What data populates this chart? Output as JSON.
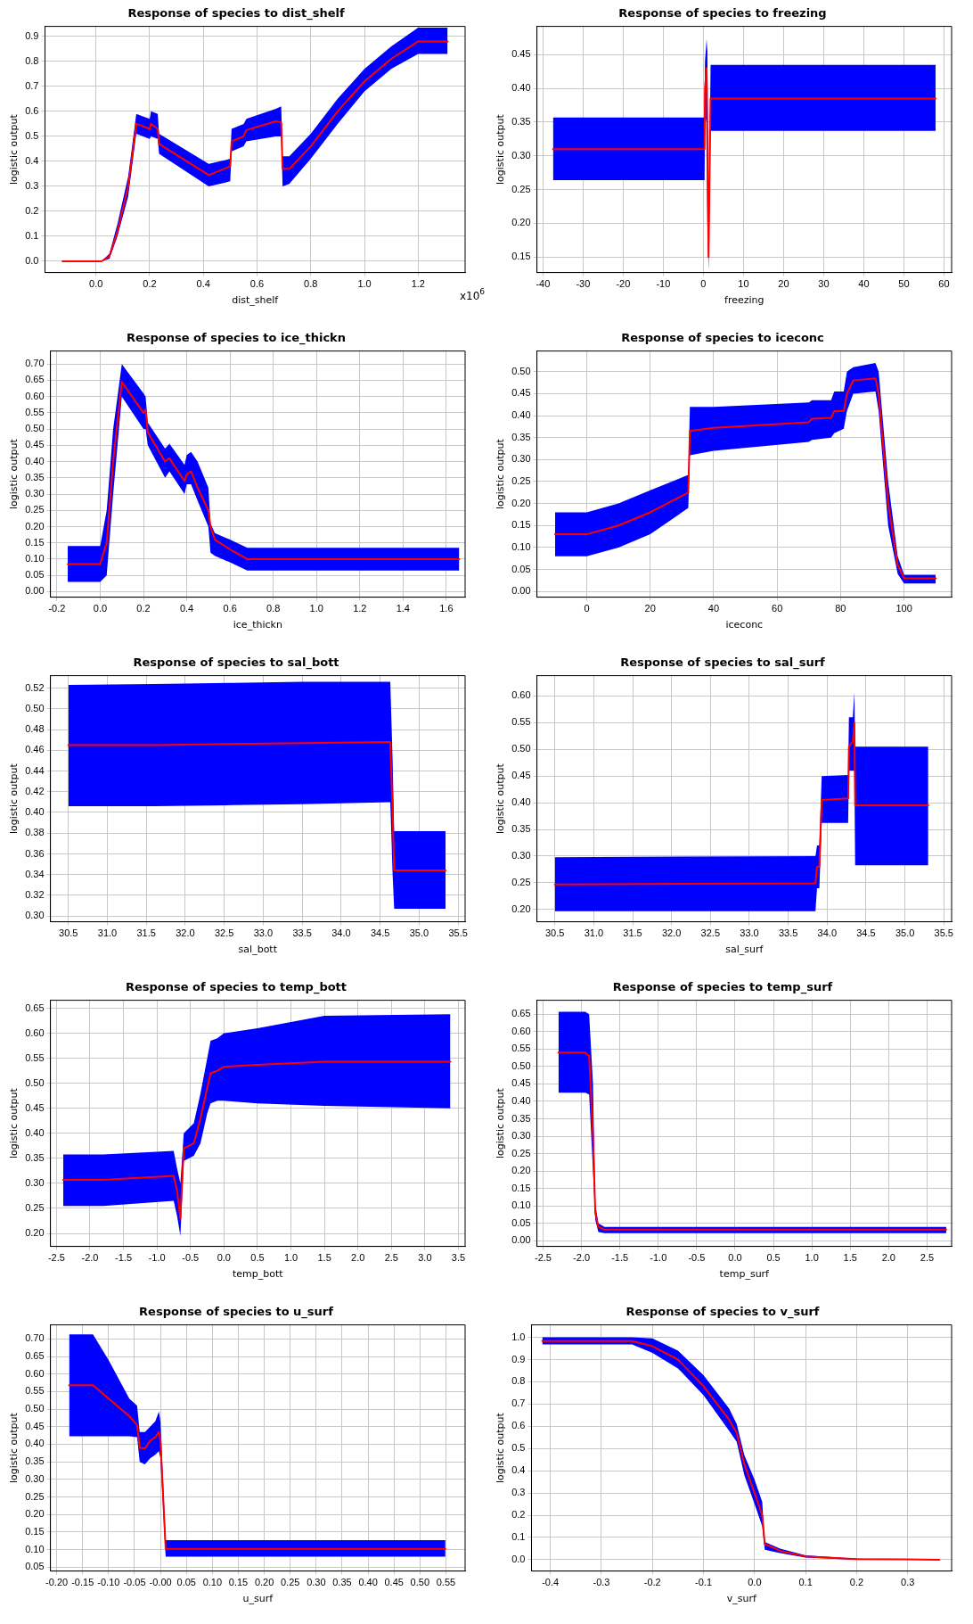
{
  "chart_data": [
    {
      "type": "line",
      "title": "Response of species to dist_shelf",
      "xlabel": "dist_shelf",
      "ylabel": "logistic output",
      "grid": true,
      "annotations": [
        "x10$^{6}$"
      ],
      "xlim": [
        -0.19,
        1.375
      ],
      "ylim": [
        -0.045,
        0.94
      ],
      "xticks": [
        {
          "value": 0,
          "label": "0.0"
        },
        {
          "value": 0.2,
          "label": "0.2"
        },
        {
          "value": 0.4,
          "label": "0.4"
        },
        {
          "value": 0.6,
          "label": "0.6"
        },
        {
          "value": 0.8,
          "label": "0.8"
        },
        {
          "value": 1,
          "label": "1.0"
        },
        {
          "value": 1.2,
          "label": "1.2"
        }
      ],
      "yticks": [
        {
          "value": 0,
          "label": "0.0"
        },
        0.1,
        0.2,
        0.3,
        0.4,
        0.5,
        0.6,
        0.7,
        0.8,
        0.9
      ],
      "series": [
        {
          "color": "#ff0000",
          "x": [
            -0.125,
            0.02,
            0.05,
            0.08,
            0.12,
            0.15,
            0.2,
            0.205,
            0.23,
            0.235,
            0.42,
            0.5,
            0.505,
            0.55,
            0.56,
            0.67,
            0.69,
            0.695,
            0.72,
            0.8,
            0.9,
            1.0,
            1.1,
            1.2,
            1.31
          ],
          "values": [
            0,
            0,
            0.02,
            0.12,
            0.3,
            0.55,
            0.53,
            0.55,
            0.53,
            0.47,
            0.345,
            0.38,
            0.48,
            0.5,
            0.525,
            0.56,
            0.555,
            0.37,
            0.37,
            0.46,
            0.6,
            0.72,
            0.81,
            0.88,
            0.88
          ],
          "upper": [
            0,
            0,
            0.03,
            0.15,
            0.34,
            0.59,
            0.57,
            0.6,
            0.59,
            0.51,
            0.39,
            0.41,
            0.53,
            0.55,
            0.57,
            0.61,
            0.62,
            0.42,
            0.42,
            0.51,
            0.65,
            0.77,
            0.86,
            0.935,
            0.935
          ],
          "lower": [
            0,
            0,
            0.01,
            0.1,
            0.26,
            0.51,
            0.49,
            0.5,
            0.49,
            0.43,
            0.3,
            0.32,
            0.44,
            0.46,
            0.48,
            0.5,
            0.5,
            0.3,
            0.31,
            0.41,
            0.55,
            0.68,
            0.77,
            0.83,
            0.83
          ]
        }
      ]
    },
    {
      "type": "line",
      "title": "Response of species to freezing",
      "xlabel": "freezing",
      "ylabel": "logistic output",
      "grid": true,
      "xlim": [
        -41.5,
        61.9
      ],
      "ylim": [
        0.127,
        0.492
      ],
      "xticks": [
        -40,
        -30,
        -20,
        -10,
        0,
        10,
        20,
        30,
        40,
        50,
        60
      ],
      "yticks": [
        0.15,
        {
          "value": 0.2,
          "label": "0.20"
        },
        0.25,
        {
          "value": 0.3,
          "label": "0.30"
        },
        0.35,
        {
          "value": 0.4,
          "label": "0.40"
        },
        0.45
      ],
      "series": [
        {
          "color": "#ff0000",
          "x": [
            -37.5,
            0.3,
            0.4,
            0.8,
            1.0,
            1.3,
            1.6,
            1.8,
            2.0,
            57.9
          ],
          "values": [
            0.31,
            0.31,
            0.4,
            0.43,
            0.3,
            0.15,
            0.3,
            0.385,
            0.385,
            0.385
          ],
          "upper": [
            0.357,
            0.357,
            0.44,
            0.473,
            0.455,
            0.2,
            0.33,
            0.435,
            0.435,
            0.435
          ],
          "lower": [
            0.264,
            0.264,
            0.36,
            0.35,
            0.2,
            0.13,
            0.24,
            0.337,
            0.337,
            0.337
          ]
        }
      ]
    },
    {
      "type": "line",
      "title": "Response of species to ice_thickn",
      "xlabel": "ice_thickn",
      "ylabel": "logistic output",
      "grid": true,
      "xlim": [
        -0.23,
        1.687
      ],
      "ylim": [
        -0.017,
        0.74
      ],
      "xticks": [
        {
          "value": -0.2,
          "label": "-0.2"
        },
        {
          "value": 0,
          "label": "0.0"
        },
        {
          "value": 0.2,
          "label": "0.2"
        },
        {
          "value": 0.4,
          "label": "0.4"
        },
        {
          "value": 0.6,
          "label": "0.6"
        },
        {
          "value": 0.8,
          "label": "0.8"
        },
        {
          "value": 1,
          "label": "1.0"
        },
        {
          "value": 1.2,
          "label": "1.2"
        },
        {
          "value": 1.4,
          "label": "1.4"
        },
        {
          "value": 1.6,
          "label": "1.6"
        }
      ],
      "yticks": [
        {
          "value": 0,
          "label": "0.00"
        },
        0.05,
        {
          "value": 0.1,
          "label": "0.10"
        },
        0.15,
        {
          "value": 0.2,
          "label": "0.20"
        },
        0.25,
        {
          "value": 0.3,
          "label": "0.30"
        },
        0.35,
        {
          "value": 0.4,
          "label": "0.40"
        },
        0.45,
        {
          "value": 0.5,
          "label": "0.50"
        },
        0.55,
        {
          "value": 0.6,
          "label": "0.60"
        },
        0.65,
        {
          "value": 0.7,
          "label": "0.70"
        }
      ],
      "series": [
        {
          "color": "#ff0000",
          "x": [
            -0.15,
            0,
            0.03,
            0.06,
            0.1,
            0.2,
            0.21,
            0.22,
            0.3,
            0.32,
            0.39,
            0.4,
            0.42,
            0.45,
            0.5,
            0.51,
            0.53,
            0.6,
            0.68,
            1.66
          ],
          "values": [
            0.085,
            0.085,
            0.15,
            0.4,
            0.645,
            0.55,
            0.56,
            0.49,
            0.4,
            0.41,
            0.34,
            0.36,
            0.37,
            0.32,
            0.25,
            0.2,
            0.16,
            0.13,
            0.1,
            0.1
          ],
          "upper": [
            0.14,
            0.14,
            0.25,
            0.5,
            0.7,
            0.61,
            0.6,
            0.52,
            0.44,
            0.455,
            0.39,
            0.42,
            0.43,
            0.4,
            0.32,
            0.21,
            0.18,
            0.16,
            0.135,
            0.135
          ],
          "lower": [
            0.03,
            0.03,
            0.05,
            0.3,
            0.6,
            0.5,
            0.5,
            0.45,
            0.35,
            0.37,
            0.3,
            0.33,
            0.33,
            0.28,
            0.2,
            0.12,
            0.11,
            0.09,
            0.065,
            0.065
          ]
        }
      ]
    },
    {
      "type": "line",
      "title": "Response of species to iceconc",
      "xlabel": "iceconc",
      "ylabel": "logistic output",
      "grid": true,
      "xlim": [
        -15.7,
        115
      ],
      "ylim": [
        -0.013,
        0.547
      ],
      "xticks": [
        0,
        20,
        40,
        60,
        80,
        100
      ],
      "yticks": [
        {
          "value": 0,
          "label": "0.00"
        },
        0.05,
        {
          "value": 0.1,
          "label": "0.10"
        },
        0.15,
        {
          "value": 0.2,
          "label": "0.20"
        },
        0.25,
        {
          "value": 0.3,
          "label": "0.30"
        },
        0.35,
        {
          "value": 0.4,
          "label": "0.40"
        },
        0.45,
        {
          "value": 0.5,
          "label": "0.50"
        }
      ],
      "series": [
        {
          "color": "#ff0000",
          "x": [
            -10,
            0,
            10,
            20,
            32,
            32.5,
            40,
            70,
            71,
            77,
            78,
            81,
            82,
            84,
            91,
            92,
            95,
            98,
            100,
            110
          ],
          "values": [
            0.13,
            0.13,
            0.15,
            0.18,
            0.225,
            0.365,
            0.372,
            0.385,
            0.393,
            0.395,
            0.41,
            0.41,
            0.45,
            0.48,
            0.485,
            0.45,
            0.2,
            0.06,
            0.03,
            0.03
          ],
          "upper": [
            0.18,
            0.18,
            0.2,
            0.23,
            0.265,
            0.42,
            0.42,
            0.43,
            0.435,
            0.435,
            0.455,
            0.455,
            0.5,
            0.51,
            0.52,
            0.5,
            0.25,
            0.08,
            0.038,
            0.038
          ],
          "lower": [
            0.08,
            0.08,
            0.1,
            0.13,
            0.19,
            0.31,
            0.32,
            0.34,
            0.345,
            0.35,
            0.36,
            0.37,
            0.41,
            0.45,
            0.455,
            0.41,
            0.15,
            0.04,
            0.018,
            0.018
          ]
        }
      ]
    },
    {
      "type": "line",
      "title": "Response of species to sal_bott",
      "xlabel": "sal_bott",
      "ylabel": "logistic output",
      "grid": true,
      "xlim": [
        30.27,
        35.59
      ],
      "ylim": [
        0.2945,
        0.532
      ],
      "xticks": [
        30.5,
        {
          "value": 31,
          "label": "31.0"
        },
        31.5,
        {
          "value": 32,
          "label": "32.0"
        },
        32.5,
        {
          "value": 33,
          "label": "33.0"
        },
        33.5,
        {
          "value": 34,
          "label": "34.0"
        },
        34.5,
        {
          "value": 35,
          "label": "35.0"
        },
        35.5
      ],
      "yticks": [
        {
          "value": 0.3,
          "label": "0.30"
        },
        0.32,
        0.34,
        0.36,
        0.38,
        {
          "value": 0.4,
          "label": "0.40"
        },
        0.42,
        0.44,
        0.46,
        0.48,
        {
          "value": 0.5,
          "label": "0.50"
        },
        0.52
      ],
      "series": [
        {
          "color": "#ff0000",
          "x": [
            30.5,
            31.6,
            32.6,
            33.5,
            34.63,
            34.66,
            34.68,
            35.34
          ],
          "values": [
            0.465,
            0.465,
            0.466,
            0.467,
            0.468,
            0.4,
            0.344,
            0.344
          ],
          "upper": [
            0.523,
            0.524,
            0.525,
            0.526,
            0.526,
            0.45,
            0.382,
            0.382
          ],
          "lower": [
            0.406,
            0.406,
            0.407,
            0.408,
            0.41,
            0.34,
            0.307,
            0.307
          ]
        }
      ]
    },
    {
      "type": "line",
      "title": "Response of species to sal_surf",
      "xlabel": "sal_surf",
      "ylabel": "logistic output",
      "grid": true,
      "xlim": [
        30.27,
        35.6
      ],
      "ylim": [
        0.177,
        0.638
      ],
      "xticks": [
        30.5,
        {
          "value": 31,
          "label": "31.0"
        },
        31.5,
        {
          "value": 32,
          "label": "32.0"
        },
        32.5,
        {
          "value": 33,
          "label": "33.0"
        },
        33.5,
        {
          "value": 34,
          "label": "34.0"
        },
        34.5,
        {
          "value": 35,
          "label": "35.0"
        },
        35.5
      ],
      "yticks": [
        {
          "value": 0.2,
          "label": "0.20"
        },
        0.25,
        {
          "value": 0.3,
          "label": "0.30"
        },
        0.35,
        {
          "value": 0.4,
          "label": "0.40"
        },
        0.45,
        {
          "value": 0.5,
          "label": "0.50"
        },
        0.55,
        {
          "value": 0.6,
          "label": "0.60"
        }
      ],
      "series": [
        {
          "color": "#ff0000",
          "x": [
            30.5,
            33.85,
            33.87,
            33.9,
            33.93,
            34.27,
            34.28,
            34.33,
            34.35,
            34.36,
            35.3
          ],
          "values": [
            0.247,
            0.249,
            0.28,
            0.28,
            0.405,
            0.408,
            0.505,
            0.515,
            0.55,
            0.395,
            0.395
          ],
          "upper": [
            0.298,
            0.3,
            0.32,
            0.32,
            0.45,
            0.452,
            0.56,
            0.56,
            0.607,
            0.505,
            0.505
          ],
          "lower": [
            0.197,
            0.197,
            0.24,
            0.24,
            0.362,
            0.362,
            0.46,
            0.46,
            0.46,
            0.283,
            0.283
          ]
        }
      ]
    },
    {
      "type": "line",
      "title": "Response of species to temp_bott",
      "xlabel": "temp_bott",
      "ylabel": "logistic output",
      "grid": true,
      "xlim": [
        -2.59,
        3.6
      ],
      "ylim": [
        0.174,
        0.666
      ],
      "xticks": [
        -2.5,
        {
          "value": -2,
          "label": "-2.0"
        },
        -1.5,
        {
          "value": -1,
          "label": "-1.0"
        },
        -0.5,
        {
          "value": 0,
          "label": "0.0"
        },
        0.5,
        {
          "value": 1,
          "label": "1.0"
        },
        1.5,
        {
          "value": 2,
          "label": "2.0"
        },
        2.5,
        {
          "value": 3,
          "label": "3.0"
        },
        3.5
      ],
      "yticks": [
        {
          "value": 0.2,
          "label": "0.20"
        },
        0.25,
        {
          "value": 0.3,
          "label": "0.30"
        },
        0.35,
        {
          "value": 0.4,
          "label": "0.40"
        },
        0.45,
        {
          "value": 0.5,
          "label": "0.50"
        },
        0.55,
        {
          "value": 0.6,
          "label": "0.60"
        },
        0.65
      ],
      "series": [
        {
          "color": "#ff0000",
          "x": [
            -2.4,
            -1.8,
            -0.75,
            -0.7,
            -0.65,
            -0.6,
            -0.45,
            -0.35,
            -0.25,
            -0.2,
            -0.1,
            0,
            0.5,
            1.5,
            3.38
          ],
          "values": [
            0.307,
            0.307,
            0.315,
            0.285,
            0.23,
            0.37,
            0.38,
            0.43,
            0.49,
            0.52,
            0.525,
            0.533,
            0.537,
            0.543,
            0.543
          ],
          "upper": [
            0.358,
            0.358,
            0.365,
            0.33,
            0.3,
            0.4,
            0.42,
            0.48,
            0.55,
            0.585,
            0.59,
            0.6,
            0.61,
            0.635,
            0.638
          ],
          "lower": [
            0.255,
            0.255,
            0.265,
            0.235,
            0.195,
            0.345,
            0.355,
            0.38,
            0.44,
            0.46,
            0.465,
            0.465,
            0.46,
            0.455,
            0.45
          ]
        }
      ]
    },
    {
      "type": "line",
      "title": "Response of species to temp_surf",
      "xlabel": "temp_surf",
      "ylabel": "logistic output",
      "grid": true,
      "xlim": [
        -2.58,
        2.82
      ],
      "ylim": [
        -0.016,
        0.69
      ],
      "xticks": [
        -2.5,
        {
          "value": -2,
          "label": "-2.0"
        },
        -1.5,
        {
          "value": -1,
          "label": "-1.0"
        },
        -0.5,
        {
          "value": 0,
          "label": "0.0"
        },
        0.5,
        {
          "value": 1,
          "label": "1.0"
        },
        1.5,
        {
          "value": 2,
          "label": "2.0"
        },
        2.5
      ],
      "yticks": [
        {
          "value": 0,
          "label": "0.00"
        },
        0.05,
        {
          "value": 0.1,
          "label": "0.10"
        },
        0.15,
        {
          "value": 0.2,
          "label": "0.20"
        },
        0.25,
        {
          "value": 0.3,
          "label": "0.30"
        },
        0.35,
        {
          "value": 0.4,
          "label": "0.40"
        },
        0.45,
        {
          "value": 0.5,
          "label": "0.50"
        },
        0.55,
        {
          "value": 0.6,
          "label": "0.60"
        },
        0.65
      ],
      "series": [
        {
          "color": "#ff0000",
          "x": [
            -2.3,
            -1.95,
            -1.9,
            -1.85,
            -1.82,
            -1.78,
            -1.7,
            2.75
          ],
          "values": [
            0.54,
            0.54,
            0.53,
            0.3,
            0.08,
            0.04,
            0.032,
            0.032
          ],
          "upper": [
            0.657,
            0.657,
            0.65,
            0.45,
            0.105,
            0.05,
            0.04,
            0.04
          ],
          "lower": [
            0.425,
            0.425,
            0.42,
            0.2,
            0.06,
            0.025,
            0.022,
            0.022
          ]
        }
      ]
    },
    {
      "type": "line",
      "title": "Response of species to u_surf",
      "xlabel": "u_surf",
      "ylabel": "logistic output",
      "grid": true,
      "xlim": [
        -0.212,
        0.587
      ],
      "ylim": [
        0.039,
        0.74
      ],
      "xticks": [
        {
          "value": -0.2,
          "label": "-0.20"
        },
        -0.15,
        {
          "value": -0.1,
          "label": "-0.10"
        },
        -0.05,
        {
          "value": 0,
          "label": "-0.00"
        },
        0.05,
        {
          "value": 0.1,
          "label": "0.10"
        },
        0.15,
        {
          "value": 0.2,
          "label": "0.20"
        },
        0.25,
        {
          "value": 0.3,
          "label": "0.30"
        },
        0.35,
        {
          "value": 0.4,
          "label": "0.40"
        },
        0.45,
        {
          "value": 0.5,
          "label": "0.50"
        },
        0.55
      ],
      "yticks": [
        0.05,
        {
          "value": 0.1,
          "label": "0.10"
        },
        0.15,
        {
          "value": 0.2,
          "label": "0.20"
        },
        0.25,
        {
          "value": 0.3,
          "label": "0.30"
        },
        0.35,
        {
          "value": 0.4,
          "label": "0.40"
        },
        0.45,
        {
          "value": 0.5,
          "label": "0.50"
        },
        0.55,
        {
          "value": 0.6,
          "label": "0.60"
        },
        0.65,
        {
          "value": 0.7,
          "label": "0.70"
        }
      ],
      "series": [
        {
          "color": "#ff0000",
          "x": [
            -0.176,
            -0.13,
            -0.1,
            -0.06,
            -0.045,
            -0.04,
            -0.03,
            -0.02,
            -0.01,
            -0.003,
            0,
            0.01,
            0.549
          ],
          "values": [
            0.568,
            0.568,
            0.53,
            0.48,
            0.455,
            0.39,
            0.388,
            0.41,
            0.42,
            0.435,
            0.41,
            0.102,
            0.102
          ],
          "upper": [
            0.713,
            0.713,
            0.64,
            0.53,
            0.51,
            0.435,
            0.435,
            0.45,
            0.465,
            0.493,
            0.465,
            0.127,
            0.127
          ],
          "lower": [
            0.423,
            0.423,
            0.423,
            0.423,
            0.42,
            0.35,
            0.343,
            0.36,
            0.37,
            0.38,
            0.36,
            0.08,
            0.08
          ]
        }
      ]
    },
    {
      "type": "line",
      "title": "Response of species to v_surf",
      "xlabel": "v_surf",
      "ylabel": "logistic output",
      "grid": true,
      "xlim": [
        -0.437,
        0.386
      ],
      "ylim": [
        -0.051,
        1.056
      ],
      "xticks": [
        -0.4,
        -0.3,
        -0.2,
        -0.1,
        {
          "value": 0,
          "label": "0.0"
        },
        0.1,
        0.2,
        0.3
      ],
      "yticks": [
        {
          "value": 0,
          "label": "0.0"
        },
        0.1,
        0.2,
        0.3,
        0.4,
        0.5,
        0.6,
        0.7,
        0.8,
        0.9,
        {
          "value": 1,
          "label": "1.0"
        }
      ],
      "series": [
        {
          "color": "#ff0000",
          "x": [
            -0.416,
            -0.24,
            -0.2,
            -0.15,
            -0.1,
            -0.05,
            -0.035,
            -0.02,
            0,
            0.015,
            0.02,
            0.05,
            0.1,
            0.2,
            0.362
          ],
          "values": [
            0.983,
            0.983,
            0.96,
            0.9,
            0.78,
            0.63,
            0.57,
            0.43,
            0.3,
            0.2,
            0.07,
            0.04,
            0.015,
            0.003,
            0
          ],
          "upper": [
            1.0,
            1.0,
            0.995,
            0.94,
            0.83,
            0.68,
            0.61,
            0.47,
            0.36,
            0.26,
            0.08,
            0.05,
            0.02,
            0.005,
            0.002
          ],
          "lower": [
            0.968,
            0.968,
            0.93,
            0.86,
            0.74,
            0.58,
            0.53,
            0.38,
            0.25,
            0.15,
            0.045,
            0.03,
            0.01,
            0,
            0
          ]
        }
      ]
    }
  ]
}
